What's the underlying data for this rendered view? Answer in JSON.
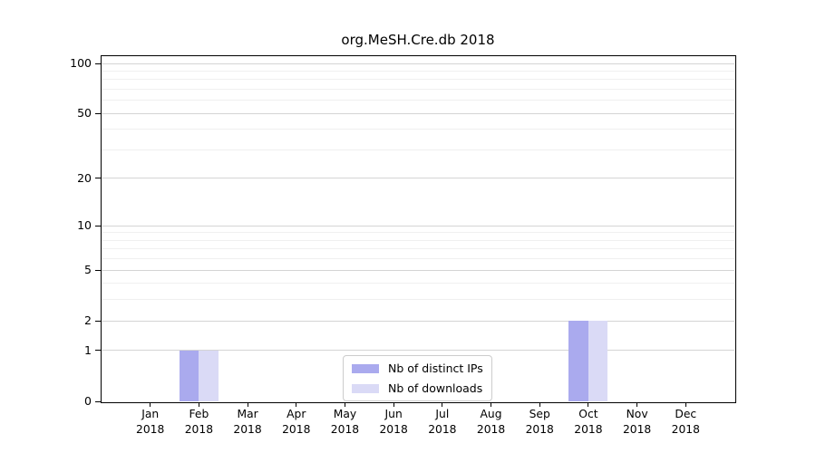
{
  "title": "org.MeSH.Cre.db 2018",
  "chart_data": {
    "type": "bar",
    "title": "org.MeSH.Cre.db 2018",
    "categories": [
      "Jan",
      "Feb",
      "Mar",
      "Apr",
      "May",
      "Jun",
      "Jul",
      "Aug",
      "Sep",
      "Oct",
      "Nov",
      "Dec"
    ],
    "year_label": "2018",
    "series": [
      {
        "name": "Nb of distinct IPs",
        "color": "#aaaaee",
        "values": [
          0,
          1,
          0,
          0,
          0,
          0,
          0,
          0,
          0,
          2,
          0,
          0
        ]
      },
      {
        "name": "Nb of downloads",
        "color": "#dadaf6",
        "values": [
          0,
          1,
          0,
          0,
          0,
          0,
          0,
          0,
          0,
          2,
          0,
          0
        ]
      }
    ],
    "yscale": "log1p",
    "yticks": [
      0,
      1,
      2,
      5,
      10,
      20,
      50,
      100
    ],
    "minor_yticks": [
      3,
      4,
      6,
      7,
      8,
      9,
      30,
      40,
      60,
      70,
      80,
      90
    ],
    "ylim": [
      0,
      100
    ],
    "grid": true,
    "legend_position": "lower center"
  }
}
